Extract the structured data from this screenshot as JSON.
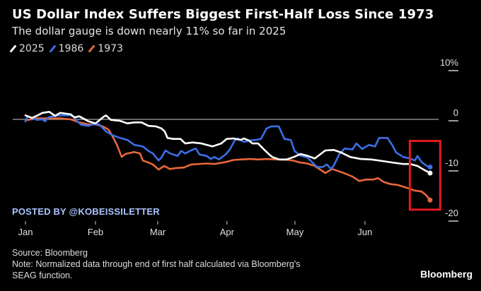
{
  "header": {
    "title": "US Dollar Index Suffers Biggest First-Half Loss Since 1973",
    "subtitle": "The dollar gauge is down nearly 11% so far in 2025"
  },
  "watermark": "POSTED BY @KOBEISSILETTER",
  "footer": {
    "source": "Source: Bloomberg",
    "note_line1": "Note: Normalized data through end of first half calculated via Bloomberg's",
    "note_line2": "SEAG function.",
    "brand": "Bloomberg"
  },
  "chart_data": {
    "type": "line",
    "title": "US Dollar Index Suffers Biggest First-Half Loss Since 1973",
    "subtitle": "The dollar gauge is down nearly 11% so far in 2025",
    "xlabel": "",
    "ylabel": "",
    "x_ticks": [
      "Jan",
      "Feb",
      "Mar",
      "Apr",
      "May",
      "Jun"
    ],
    "x_tick_positions": [
      0,
      0.173,
      0.327,
      0.498,
      0.666,
      0.839
    ],
    "x_range": [
      0,
      1
    ],
    "y_ticks": [
      10,
      0,
      -10,
      -20
    ],
    "y_tick_labels": [
      "10%",
      "0",
      "-10",
      "-20"
    ],
    "ylim": [
      -21,
      11
    ],
    "zero_line": true,
    "legend_position": "top-left",
    "highlight_box": {
      "x_range": [
        0.95,
        1.025
      ],
      "y_range": [
        -4.3,
        -18
      ]
    },
    "series": [
      {
        "name": "2025",
        "color": "#ffffff",
        "points": [
          [
            0,
            0.8
          ],
          [
            0.016,
            0.3
          ],
          [
            0.028,
            0.7
          ],
          [
            0.042,
            1.3
          ],
          [
            0.059,
            1.5
          ],
          [
            0.073,
            0.7
          ],
          [
            0.086,
            1.3
          ],
          [
            0.112,
            1.0
          ],
          [
            0.121,
            0.4
          ],
          [
            0.133,
            0.6
          ],
          [
            0.156,
            -0.4
          ],
          [
            0.173,
            -0.8
          ],
          [
            0.191,
            0.4
          ],
          [
            0.199,
            0.8
          ],
          [
            0.211,
            -0.1
          ],
          [
            0.234,
            -0.3
          ],
          [
            0.252,
            -0.8
          ],
          [
            0.269,
            -0.6
          ],
          [
            0.287,
            -0.6
          ],
          [
            0.304,
            -1.3
          ],
          [
            0.322,
            -1.4
          ],
          [
            0.336,
            -1.8
          ],
          [
            0.344,
            -2.4
          ],
          [
            0.351,
            -3.7
          ],
          [
            0.365,
            -3.9
          ],
          [
            0.383,
            -3.9
          ],
          [
            0.395,
            -4.8
          ],
          [
            0.413,
            -4.6
          ],
          [
            0.435,
            -4.8
          ],
          [
            0.462,
            -5.4
          ],
          [
            0.484,
            -4.8
          ],
          [
            0.497,
            -3.9
          ],
          [
            0.514,
            -3.8
          ],
          [
            0.532,
            -4.1
          ],
          [
            0.54,
            -3.8
          ],
          [
            0.552,
            -4.2
          ],
          [
            0.561,
            -4.8
          ],
          [
            0.575,
            -4.8
          ],
          [
            0.587,
            -5.8
          ],
          [
            0.601,
            -6.9
          ],
          [
            0.61,
            -7.5
          ],
          [
            0.628,
            -8.0
          ],
          [
            0.645,
            -8.0
          ],
          [
            0.663,
            -7.5
          ],
          [
            0.68,
            -6.9
          ],
          [
            0.698,
            -7.3
          ],
          [
            0.715,
            -7.8
          ],
          [
            0.741,
            -6.2
          ],
          [
            0.762,
            -6.1
          ],
          [
            0.78,
            -6.6
          ],
          [
            0.803,
            -7.5
          ],
          [
            0.829,
            -7.9
          ],
          [
            0.855,
            -8.0
          ],
          [
            0.881,
            -8.3
          ],
          [
            0.907,
            -8.6
          ],
          [
            0.934,
            -8.9
          ],
          [
            0.951,
            -8.9
          ],
          [
            0.969,
            -9.3
          ],
          [
            0.986,
            -10.1
          ],
          [
            1.0,
            -10.7
          ]
        ]
      },
      {
        "name": "1986",
        "color": "#3b6fe6",
        "points": [
          [
            0,
            -0.4
          ],
          [
            0.005,
            0.6
          ],
          [
            0.016,
            0.3
          ],
          [
            0.028,
            -0.1
          ],
          [
            0.042,
            0.0
          ],
          [
            0.049,
            -0.4
          ],
          [
            0.056,
            0.4
          ],
          [
            0.066,
            0.6
          ],
          [
            0.086,
            0.8
          ],
          [
            0.101,
            0.8
          ],
          [
            0.112,
            0.8
          ],
          [
            0.121,
            0.4
          ],
          [
            0.128,
            -0.4
          ],
          [
            0.138,
            -1.1
          ],
          [
            0.156,
            -1.3
          ],
          [
            0.165,
            -1.0
          ],
          [
            0.182,
            -1.0
          ],
          [
            0.199,
            -2.4
          ],
          [
            0.216,
            -3.2
          ],
          [
            0.234,
            -3.7
          ],
          [
            0.252,
            -4.1
          ],
          [
            0.269,
            -5.1
          ],
          [
            0.29,
            -5.4
          ],
          [
            0.304,
            -6.3
          ],
          [
            0.315,
            -6.8
          ],
          [
            0.322,
            -7.5
          ],
          [
            0.329,
            -8.2
          ],
          [
            0.337,
            -7.5
          ],
          [
            0.346,
            -6.2
          ],
          [
            0.358,
            -6.8
          ],
          [
            0.376,
            -7.3
          ],
          [
            0.385,
            -6.3
          ],
          [
            0.395,
            -6.8
          ],
          [
            0.409,
            -6.2
          ],
          [
            0.421,
            -5.8
          ],
          [
            0.43,
            -7.0
          ],
          [
            0.448,
            -7.3
          ],
          [
            0.458,
            -7.9
          ],
          [
            0.467,
            -7.5
          ],
          [
            0.478,
            -8.0
          ],
          [
            0.496,
            -6.9
          ],
          [
            0.506,
            -5.9
          ],
          [
            0.517,
            -4.2
          ],
          [
            0.525,
            -3.8
          ],
          [
            0.54,
            -4.5
          ],
          [
            0.556,
            -4.2
          ],
          [
            0.57,
            -4.1
          ],
          [
            0.582,
            -3.9
          ],
          [
            0.596,
            -1.8
          ],
          [
            0.608,
            -1.4
          ],
          [
            0.626,
            -1.4
          ],
          [
            0.64,
            -3.9
          ],
          [
            0.656,
            -4.1
          ],
          [
            0.665,
            -6.3
          ],
          [
            0.679,
            -7.2
          ],
          [
            0.697,
            -7.6
          ],
          [
            0.713,
            -8.9
          ],
          [
            0.721,
            -9.5
          ],
          [
            0.735,
            -9.5
          ],
          [
            0.745,
            -9.0
          ],
          [
            0.755,
            -9.9
          ],
          [
            0.762,
            -9.2
          ],
          [
            0.776,
            -6.9
          ],
          [
            0.789,
            -5.8
          ],
          [
            0.808,
            -6.0
          ],
          [
            0.818,
            -4.8
          ],
          [
            0.832,
            -5.9
          ],
          [
            0.849,
            -5.1
          ],
          [
            0.864,
            -5.4
          ],
          [
            0.874,
            -3.7
          ],
          [
            0.895,
            -3.7
          ],
          [
            0.907,
            -5.2
          ],
          [
            0.916,
            -6.6
          ],
          [
            0.934,
            -7.5
          ],
          [
            0.951,
            -7.8
          ],
          [
            0.962,
            -8.2
          ],
          [
            0.969,
            -7.3
          ],
          [
            0.979,
            -8.5
          ],
          [
            0.992,
            -9.3
          ],
          [
            1.0,
            -9.5
          ]
        ]
      },
      {
        "name": "1973",
        "color": "#e8673c",
        "points": [
          [
            0,
            -0.2
          ],
          [
            0.028,
            0.2
          ],
          [
            0.056,
            0.2
          ],
          [
            0.086,
            0.2
          ],
          [
            0.112,
            0.0
          ],
          [
            0.133,
            -0.6
          ],
          [
            0.156,
            -1.0
          ],
          [
            0.173,
            -1.0
          ],
          [
            0.191,
            -1.4
          ],
          [
            0.206,
            -2.1
          ],
          [
            0.216,
            -3.5
          ],
          [
            0.226,
            -5.1
          ],
          [
            0.238,
            -7.5
          ],
          [
            0.247,
            -6.9
          ],
          [
            0.269,
            -6.5
          ],
          [
            0.283,
            -6.8
          ],
          [
            0.29,
            -8.2
          ],
          [
            0.304,
            -8.6
          ],
          [
            0.315,
            -9.0
          ],
          [
            0.329,
            -10.0
          ],
          [
            0.343,
            -9.3
          ],
          [
            0.357,
            -9.9
          ],
          [
            0.372,
            -9.7
          ],
          [
            0.392,
            -9.6
          ],
          [
            0.409,
            -9.0
          ],
          [
            0.428,
            -8.9
          ],
          [
            0.448,
            -8.8
          ],
          [
            0.467,
            -8.9
          ],
          [
            0.496,
            -8.5
          ],
          [
            0.514,
            -8.1
          ],
          [
            0.532,
            -8.0
          ],
          [
            0.556,
            -7.9
          ],
          [
            0.575,
            -8.0
          ],
          [
            0.596,
            -7.9
          ],
          [
            0.622,
            -8.0
          ],
          [
            0.64,
            -8.0
          ],
          [
            0.661,
            -8.2
          ],
          [
            0.679,
            -8.6
          ],
          [
            0.697,
            -8.8
          ],
          [
            0.715,
            -9.3
          ],
          [
            0.73,
            -10.1
          ],
          [
            0.741,
            -10.7
          ],
          [
            0.758,
            -9.9
          ],
          [
            0.776,
            -10.4
          ],
          [
            0.793,
            -10.9
          ],
          [
            0.808,
            -11.4
          ],
          [
            0.825,
            -12.3
          ],
          [
            0.842,
            -12.0
          ],
          [
            0.86,
            -12.0
          ],
          [
            0.871,
            -11.7
          ],
          [
            0.886,
            -12.5
          ],
          [
            0.902,
            -12.9
          ],
          [
            0.921,
            -13.1
          ],
          [
            0.941,
            -13.6
          ],
          [
            0.962,
            -14.2
          ],
          [
            0.979,
            -14.4
          ],
          [
            0.99,
            -15.1
          ],
          [
            1.0,
            -16.1
          ]
        ]
      }
    ]
  }
}
